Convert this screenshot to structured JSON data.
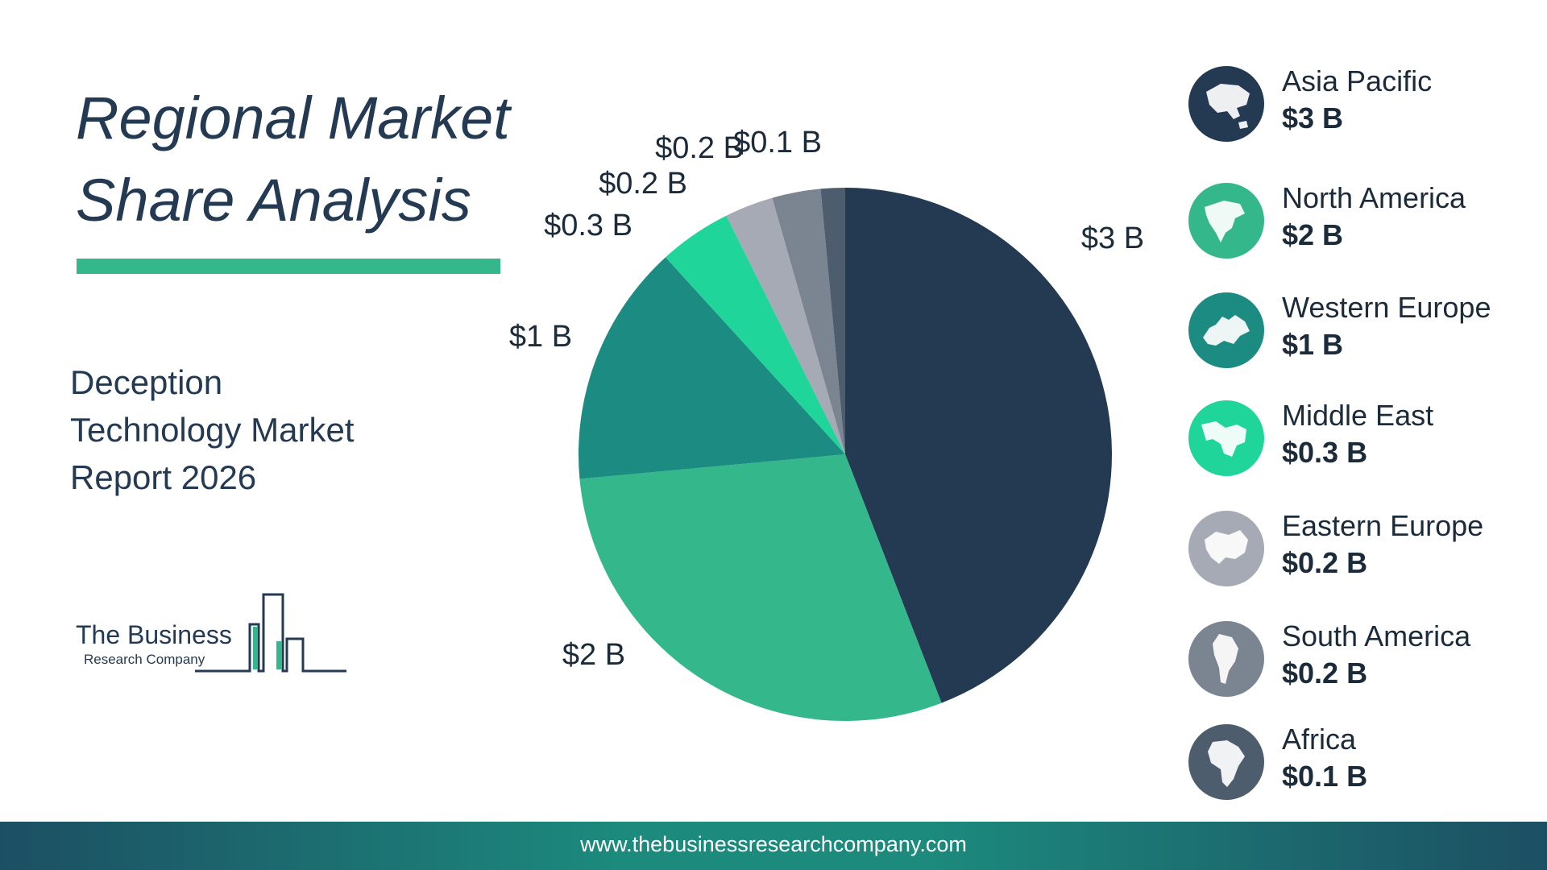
{
  "title": [
    "Regional Market",
    "Share Analysis"
  ],
  "subtitle": [
    "Deception",
    "Technology Market",
    "Report 2026"
  ],
  "logo": {
    "line1": "The Business",
    "line2": "Research Company"
  },
  "footer": {
    "url": "www.thebusinessresearchcompany.com"
  },
  "colors": {
    "accent": "#34b78a",
    "dark": "#243a52"
  },
  "chart_data": {
    "type": "pie",
    "title": "Regional Market Share Analysis",
    "unit": "$ B",
    "legend_position": "right",
    "slices": [
      {
        "name": "Asia Pacific",
        "value": 3,
        "label": "$3 B",
        "color": "#243a52",
        "icon": "asia-pacific-globe-icon"
      },
      {
        "name": "North America",
        "value": 2,
        "label": "$2 B",
        "color": "#34b78a",
        "icon": "north-america-globe-icon"
      },
      {
        "name": "Western Europe",
        "value": 1,
        "label": "$1 B",
        "color": "#1c8b82",
        "icon": "western-europe-globe-icon"
      },
      {
        "name": "Middle East",
        "value": 0.3,
        "label": "$0.3 B",
        "color": "#20d59a",
        "icon": "middle-east-globe-icon"
      },
      {
        "name": "Eastern Europe",
        "value": 0.2,
        "label": "$0.2 B",
        "color": "#a6aab4",
        "icon": "eastern-europe-globe-icon"
      },
      {
        "name": "South America",
        "value": 0.2,
        "label": "$0.2 B",
        "color": "#7b8592",
        "icon": "south-america-globe-icon"
      },
      {
        "name": "Africa",
        "value": 0.1,
        "label": "$0.1 B",
        "color": "#4d5d6e",
        "icon": "africa-globe-icon"
      }
    ]
  }
}
